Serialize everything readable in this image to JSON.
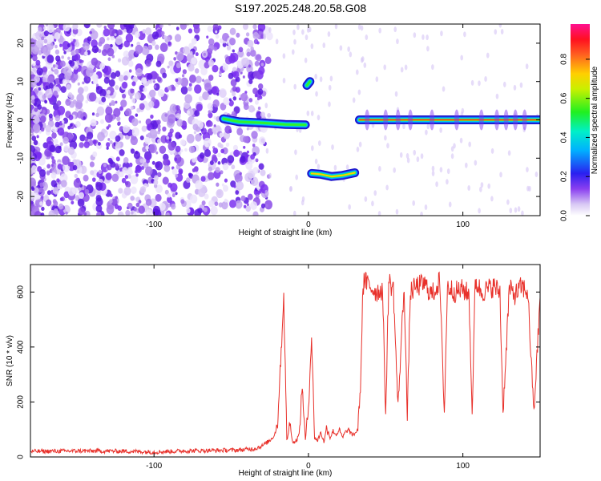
{
  "title": "S197.2025.248.20.58.G08",
  "colors": {
    "line": "#e8302a",
    "axis": "#000000"
  },
  "chart_data": [
    {
      "type": "heatmap",
      "xlabel": "Height of straight line (km)",
      "ylabel": "Frequency (Hz)",
      "xlim": [
        -180,
        150
      ],
      "ylim": [
        -25,
        25
      ],
      "x_ticks": [
        -100,
        0,
        100
      ],
      "y_ticks": [
        20,
        10,
        0,
        -10,
        -20
      ],
      "colorbar": {
        "label": "Normalized spectral amplitude",
        "range": [
          0,
          1
        ],
        "ticks": [
          "0.0",
          "0.2",
          "0.4",
          "0.6",
          "0.8"
        ]
      },
      "traces": [
        {
          "x": [
            -55,
            -45,
            -30,
            -15,
            -2
          ],
          "y": [
            0.3,
            -0.5,
            -0.8,
            -1.2,
            -1.3
          ]
        },
        {
          "x": [
            2,
            8,
            15,
            22,
            30
          ],
          "y": [
            -14,
            -14.2,
            -14.8,
            -14.5,
            -13.8
          ]
        },
        {
          "x": [
            -1,
            1
          ],
          "y": [
            9,
            10
          ]
        },
        {
          "x": [
            33,
            60,
            90,
            120,
            150
          ],
          "y": [
            0,
            0,
            0,
            0,
            0
          ]
        }
      ]
    },
    {
      "type": "line",
      "xlabel": "Height of straight line (km)",
      "ylabel": "SNR (10 * v/v)",
      "xlim": [
        -180,
        150
      ],
      "ylim": [
        0,
        700
      ],
      "x_ticks": [
        -100,
        0,
        100
      ],
      "y_ticks": [
        600,
        400,
        200,
        0
      ],
      "series": [
        {
          "x": [
            -180,
            -150,
            -120,
            -100,
            -80,
            -60,
            -45,
            -35,
            -30,
            -25,
            -22,
            -20,
            -18,
            -16,
            -14,
            -12,
            -10,
            -8,
            -6,
            -4,
            -2,
            0,
            2,
            4,
            6,
            8,
            10,
            12,
            14,
            16,
            18,
            20,
            22,
            24,
            26,
            28,
            30,
            32,
            34,
            35,
            36,
            40,
            44,
            48,
            50,
            52,
            55,
            58,
            62,
            64,
            66,
            70,
            75,
            80,
            85,
            88,
            90,
            95,
            100,
            104,
            106,
            108,
            112,
            116,
            120,
            124,
            126,
            130,
            134,
            138,
            142,
            146,
            150
          ],
          "y": [
            20,
            22,
            21,
            18,
            22,
            24,
            25,
            30,
            40,
            60,
            80,
            120,
            350,
            590,
            60,
            120,
            50,
            60,
            80,
            260,
            60,
            180,
            440,
            70,
            60,
            90,
            55,
            110,
            70,
            95,
            80,
            100,
            70,
            90,
            100,
            80,
            85,
            100,
            290,
            590,
            640,
            620,
            600,
            610,
            150,
            640,
            610,
            180,
            630,
            140,
            600,
            620,
            630,
            590,
            640,
            160,
            620,
            600,
            610,
            590,
            150,
            640,
            600,
            610,
            620,
            600,
            160,
            610,
            590,
            620,
            600,
            160,
            580
          ]
        }
      ]
    }
  ]
}
